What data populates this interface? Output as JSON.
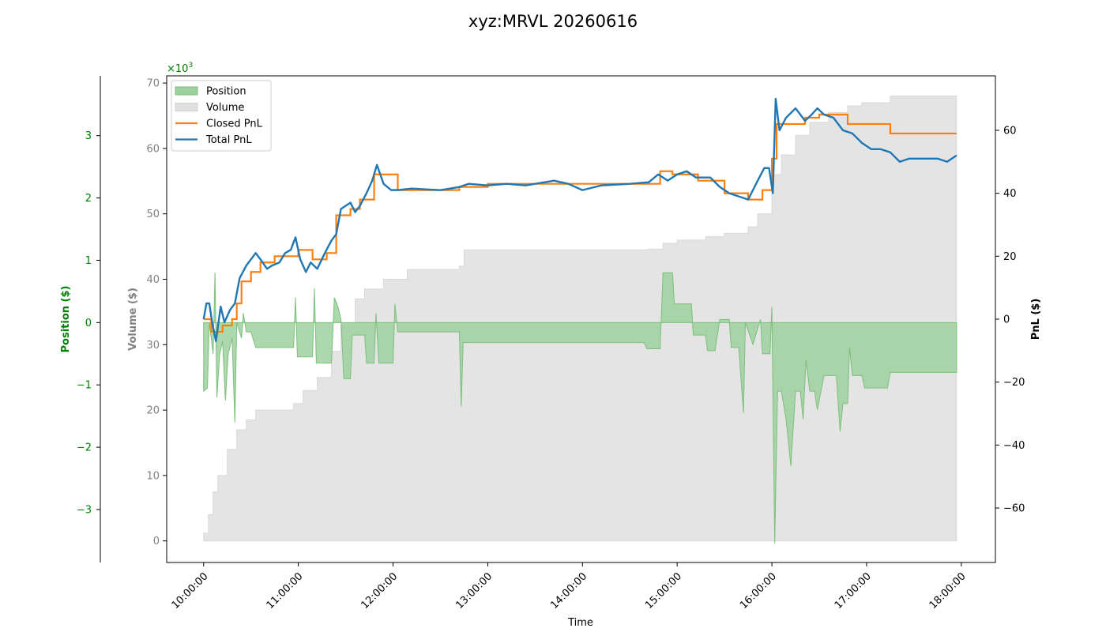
{
  "chart_data": {
    "type": "line",
    "title": "xyz:MRVL 20260616",
    "xlabel": "Time",
    "x_ticks": [
      "10:00:00",
      "11:00:00",
      "12:00:00",
      "13:00:00",
      "14:00:00",
      "15:00:00",
      "16:00:00",
      "17:00:00",
      "18:00:00"
    ],
    "x_range_hours": [
      9.61,
      18.36
    ],
    "axes": {
      "volume": {
        "label": "Volume ($)",
        "multiplier_label": "×10",
        "multiplier_exp": "3",
        "range": [
          -3.3,
          71.1
        ],
        "ticks": [
          0,
          10,
          20,
          30,
          40,
          50,
          60,
          70
        ],
        "color": "#808080"
      },
      "position": {
        "label": "Position ($)",
        "range": [
          -3.85,
          3.96
        ],
        "ticks": [
          -3,
          -2,
          -1,
          0,
          1,
          2,
          3
        ],
        "color": "#008000"
      },
      "pnl": {
        "label": "PnL ($)",
        "range": [
          -77.3,
          77.3
        ],
        "ticks": [
          -60,
          -40,
          -20,
          0,
          20,
          40,
          60
        ],
        "color": "#000000"
      }
    },
    "legend": {
      "placement": "upper-left",
      "entries": [
        {
          "label": "Position",
          "kind": "patch",
          "color": "#9fd09f"
        },
        {
          "label": "Volume",
          "kind": "patch",
          "color": "#e0e0e0"
        },
        {
          "label": "Closed PnL",
          "kind": "line",
          "color": "#ff7f0e"
        },
        {
          "label": "Total PnL",
          "kind": "line",
          "color": "#1f77b4"
        }
      ]
    },
    "series": [
      {
        "name": "Volume",
        "axis": "volume",
        "style": "area-step",
        "color": "#e4e4e4",
        "points": [
          [
            10.0,
            1.2
          ],
          [
            10.05,
            4.0
          ],
          [
            10.1,
            7.5
          ],
          [
            10.15,
            10.0
          ],
          [
            10.25,
            14.0
          ],
          [
            10.35,
            17.0
          ],
          [
            10.45,
            18.5
          ],
          [
            10.55,
            20.0
          ],
          [
            10.95,
            21.0
          ],
          [
            11.05,
            23.0
          ],
          [
            11.2,
            25.0
          ],
          [
            11.35,
            29.0
          ],
          [
            11.45,
            33.0
          ],
          [
            11.6,
            37.0
          ],
          [
            11.7,
            38.5
          ],
          [
            11.9,
            40.0
          ],
          [
            12.15,
            41.5
          ],
          [
            12.7,
            42.0
          ],
          [
            12.75,
            44.5
          ],
          [
            13.5,
            44.5
          ],
          [
            14.7,
            44.6
          ],
          [
            14.85,
            45.5
          ],
          [
            15.0,
            46.0
          ],
          [
            15.3,
            46.5
          ],
          [
            15.5,
            47.0
          ],
          [
            15.75,
            48.0
          ],
          [
            15.85,
            50.0
          ],
          [
            16.0,
            56.0
          ],
          [
            16.1,
            59.0
          ],
          [
            16.25,
            62.0
          ],
          [
            16.4,
            64.0
          ],
          [
            16.6,
            65.5
          ],
          [
            16.8,
            66.5
          ],
          [
            16.95,
            67.0
          ],
          [
            17.25,
            68.0
          ],
          [
            17.95,
            68.0
          ]
        ]
      },
      {
        "name": "Position",
        "axis": "position",
        "style": "area",
        "color": "#9fd09f",
        "points": [
          [
            10.0,
            -1.1
          ],
          [
            10.04,
            -1.05
          ],
          [
            10.06,
            0.0
          ],
          [
            10.1,
            -0.5
          ],
          [
            10.12,
            0.8
          ],
          [
            10.14,
            -1.2
          ],
          [
            10.17,
            -0.5
          ],
          [
            10.2,
            -0.3
          ],
          [
            10.23,
            -1.25
          ],
          [
            10.26,
            -0.5
          ],
          [
            10.3,
            -0.25
          ],
          [
            10.33,
            -1.6
          ],
          [
            10.35,
            0.0
          ],
          [
            10.4,
            -0.25
          ],
          [
            10.42,
            0.15
          ],
          [
            10.45,
            -0.15
          ],
          [
            10.5,
            -0.15
          ],
          [
            10.55,
            -0.4
          ],
          [
            10.6,
            -0.4
          ],
          [
            10.95,
            -0.4
          ],
          [
            10.97,
            0.4
          ],
          [
            10.99,
            -0.55
          ],
          [
            11.15,
            -0.55
          ],
          [
            11.17,
            0.55
          ],
          [
            11.19,
            -0.65
          ],
          [
            11.35,
            -0.65
          ],
          [
            11.38,
            0.4
          ],
          [
            11.42,
            0.25
          ],
          [
            11.45,
            0.05
          ],
          [
            11.48,
            -0.9
          ],
          [
            11.55,
            -0.9
          ],
          [
            11.57,
            -0.2
          ],
          [
            11.7,
            -0.2
          ],
          [
            11.72,
            -0.65
          ],
          [
            11.8,
            -0.65
          ],
          [
            11.82,
            0.15
          ],
          [
            11.85,
            -0.65
          ],
          [
            12.0,
            -0.65
          ],
          [
            12.02,
            0.3
          ],
          [
            12.05,
            -0.15
          ],
          [
            12.7,
            -0.15
          ],
          [
            12.72,
            -1.35
          ],
          [
            12.74,
            -0.32
          ],
          [
            14.65,
            -0.32
          ],
          [
            14.68,
            -0.42
          ],
          [
            14.82,
            -0.42
          ],
          [
            14.85,
            0.8
          ],
          [
            14.95,
            0.8
          ],
          [
            14.97,
            0.3
          ],
          [
            15.15,
            0.3
          ],
          [
            15.17,
            -0.2
          ],
          [
            15.3,
            -0.2
          ],
          [
            15.32,
            -0.45
          ],
          [
            15.4,
            -0.45
          ],
          [
            15.45,
            0.05
          ],
          [
            15.55,
            0.05
          ],
          [
            15.57,
            -0.4
          ],
          [
            15.65,
            -0.4
          ],
          [
            15.7,
            -1.45
          ],
          [
            15.72,
            0.0
          ],
          [
            15.8,
            -0.35
          ],
          [
            15.88,
            0.05
          ],
          [
            15.9,
            -0.5
          ],
          [
            15.98,
            -0.5
          ],
          [
            16.0,
            0.25
          ],
          [
            16.03,
            -3.55
          ],
          [
            16.06,
            -1.1
          ],
          [
            16.1,
            -1.1
          ],
          [
            16.15,
            -1.55
          ],
          [
            16.2,
            -2.3
          ],
          [
            16.25,
            -1.1
          ],
          [
            16.3,
            -1.1
          ],
          [
            16.33,
            -1.55
          ],
          [
            16.36,
            -0.6
          ],
          [
            16.4,
            -1.1
          ],
          [
            16.45,
            -1.1
          ],
          [
            16.48,
            -1.4
          ],
          [
            16.55,
            -0.85
          ],
          [
            16.68,
            -0.85
          ],
          [
            16.72,
            -1.75
          ],
          [
            16.75,
            -1.3
          ],
          [
            16.8,
            -1.3
          ],
          [
            16.82,
            -0.4
          ],
          [
            16.85,
            -0.85
          ],
          [
            16.95,
            -0.85
          ],
          [
            16.98,
            -1.05
          ],
          [
            17.22,
            -1.05
          ],
          [
            17.25,
            -0.8
          ],
          [
            17.95,
            -0.8
          ]
        ]
      },
      {
        "name": "Closed PnL",
        "axis": "pnl",
        "style": "step",
        "color": "#ff7f0e",
        "points": [
          [
            10.0,
            0
          ],
          [
            10.05,
            0
          ],
          [
            10.08,
            -4
          ],
          [
            10.2,
            -2
          ],
          [
            10.3,
            0
          ],
          [
            10.35,
            5
          ],
          [
            10.4,
            12
          ],
          [
            10.5,
            15
          ],
          [
            10.6,
            18
          ],
          [
            10.75,
            20
          ],
          [
            11.0,
            22
          ],
          [
            11.15,
            19
          ],
          [
            11.3,
            21
          ],
          [
            11.4,
            33
          ],
          [
            11.55,
            35
          ],
          [
            11.65,
            38
          ],
          [
            11.8,
            46
          ],
          [
            12.05,
            41
          ],
          [
            12.7,
            42
          ],
          [
            13.0,
            43
          ],
          [
            13.5,
            43
          ],
          [
            14.25,
            43
          ],
          [
            14.82,
            47
          ],
          [
            14.95,
            46
          ],
          [
            15.22,
            44
          ],
          [
            15.5,
            40
          ],
          [
            15.75,
            38
          ],
          [
            15.9,
            41
          ],
          [
            16.0,
            51
          ],
          [
            16.05,
            62
          ],
          [
            16.35,
            64
          ],
          [
            16.5,
            65
          ],
          [
            16.8,
            62
          ],
          [
            17.25,
            59
          ],
          [
            17.95,
            59
          ]
        ]
      },
      {
        "name": "Total PnL",
        "axis": "pnl",
        "style": "line",
        "color": "#1f77b4",
        "points": [
          [
            10.0,
            0
          ],
          [
            10.03,
            5
          ],
          [
            10.06,
            5
          ],
          [
            10.09,
            -1
          ],
          [
            10.13,
            -7
          ],
          [
            10.18,
            4
          ],
          [
            10.22,
            -1
          ],
          [
            10.28,
            3
          ],
          [
            10.33,
            5
          ],
          [
            10.38,
            13
          ],
          [
            10.45,
            17
          ],
          [
            10.55,
            21
          ],
          [
            10.6,
            19
          ],
          [
            10.67,
            16
          ],
          [
            10.72,
            17
          ],
          [
            10.8,
            18
          ],
          [
            10.86,
            21
          ],
          [
            10.92,
            22
          ],
          [
            10.97,
            26
          ],
          [
            11.02,
            19
          ],
          [
            11.08,
            15
          ],
          [
            11.13,
            18
          ],
          [
            11.2,
            16
          ],
          [
            11.28,
            21
          ],
          [
            11.35,
            25
          ],
          [
            11.4,
            27
          ],
          [
            11.45,
            35
          ],
          [
            11.5,
            36
          ],
          [
            11.55,
            37
          ],
          [
            11.6,
            34
          ],
          [
            11.65,
            36
          ],
          [
            11.72,
            40
          ],
          [
            11.78,
            44
          ],
          [
            11.83,
            49
          ],
          [
            11.9,
            43
          ],
          [
            11.98,
            41
          ],
          [
            12.05,
            41
          ],
          [
            12.2,
            41.5
          ],
          [
            12.5,
            41
          ],
          [
            12.7,
            42
          ],
          [
            12.8,
            43
          ],
          [
            13.0,
            42.5
          ],
          [
            13.2,
            43
          ],
          [
            13.4,
            42.5
          ],
          [
            13.6,
            43.5
          ],
          [
            13.7,
            44
          ],
          [
            13.85,
            43
          ],
          [
            14.0,
            41
          ],
          [
            14.2,
            42.5
          ],
          [
            14.5,
            43
          ],
          [
            14.7,
            43.5
          ],
          [
            14.8,
            46
          ],
          [
            14.9,
            44
          ],
          [
            15.0,
            46
          ],
          [
            15.1,
            47
          ],
          [
            15.2,
            45
          ],
          [
            15.35,
            45
          ],
          [
            15.45,
            42
          ],
          [
            15.55,
            40
          ],
          [
            15.65,
            39
          ],
          [
            15.75,
            38
          ],
          [
            15.8,
            41
          ],
          [
            15.85,
            44
          ],
          [
            15.92,
            48
          ],
          [
            15.97,
            48
          ],
          [
            16.01,
            40
          ],
          [
            16.04,
            70
          ],
          [
            16.08,
            60
          ],
          [
            16.15,
            64
          ],
          [
            16.25,
            67
          ],
          [
            16.35,
            63
          ],
          [
            16.42,
            65
          ],
          [
            16.48,
            67
          ],
          [
            16.55,
            65
          ],
          [
            16.65,
            64
          ],
          [
            16.75,
            60
          ],
          [
            16.85,
            59
          ],
          [
            16.95,
            56
          ],
          [
            17.05,
            54
          ],
          [
            17.15,
            54
          ],
          [
            17.25,
            53
          ],
          [
            17.35,
            50
          ],
          [
            17.45,
            51
          ],
          [
            17.6,
            51
          ],
          [
            17.75,
            51
          ],
          [
            17.85,
            50
          ],
          [
            17.95,
            52
          ]
        ]
      }
    ]
  }
}
